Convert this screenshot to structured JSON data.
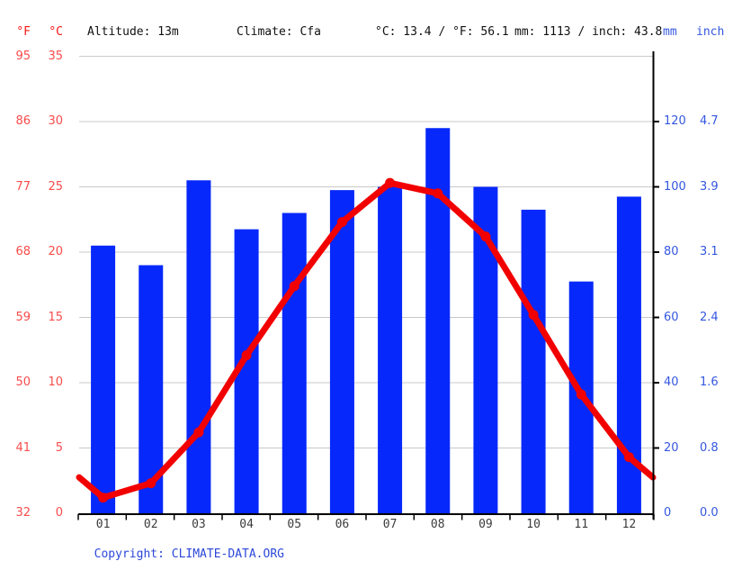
{
  "header": {
    "f_unit": "°F",
    "c_unit": "°C",
    "altitude": "Altitude: 13m",
    "climate": "Climate: Cfa",
    "temperature_summary": "°C: 13.4 / °F: 56.1",
    "precipitation_summary": "mm: 1113 / inch: 43.8",
    "mm_unit": "mm",
    "inch_unit": "inch"
  },
  "footer": {
    "copyright_prefix": "Copyright: ",
    "copyright_link": "CLIMATE-DATA.ORG"
  },
  "colors": {
    "bar_blue": "#0628fa",
    "line_red": "#f20000",
    "red_text_header": "#f51616",
    "red_text_axis": "#f94b4b",
    "blue_text": "#3457e0",
    "link_blue": "#2c47d9",
    "grid_gray": "#c9c9c9",
    "axis_black": "#000000",
    "month_text": "#3c3c3c",
    "header_text": "#111111"
  },
  "chart_data": {
    "type": "bar",
    "subtype": "climograph: monthly precipitation bars + monthly mean temperature line",
    "title": "",
    "categories": [
      "01",
      "02",
      "03",
      "04",
      "05",
      "06",
      "07",
      "08",
      "09",
      "10",
      "11",
      "12"
    ],
    "series": [
      {
        "name": "Precipitation (mm)",
        "type": "bar",
        "values": [
          82,
          76,
          102,
          87,
          92,
          99,
          100,
          118,
          100,
          93,
          71,
          97
        ]
      },
      {
        "name": "Temperature (°C)",
        "type": "line",
        "values": [
          1.2,
          2.3,
          6.2,
          12.1,
          17.4,
          22.3,
          25.3,
          24.5,
          21.2,
          15.2,
          9.1,
          4.3
        ]
      }
    ],
    "y_left_temperature": {
      "unit_c": "°C",
      "unit_f": "°F",
      "ticks_c": [
        "35",
        "30",
        "25",
        "20",
        "15",
        "10",
        "5",
        "0"
      ],
      "ticks_f": [
        "95",
        "86",
        "77",
        "68",
        "59",
        "50",
        "41",
        "32"
      ],
      "range_c": [
        0,
        35.5
      ]
    },
    "y_right_precipitation": {
      "unit_mm": "mm",
      "unit_inch": "inch",
      "ticks_mm": [
        "120",
        "100",
        "80",
        "60",
        "40",
        "20",
        "0"
      ],
      "ticks_inch": [
        "4.7",
        "3.9",
        "3.1",
        "2.4",
        "1.6",
        "0.8",
        "0.0"
      ],
      "range_mm": [
        0,
        142
      ]
    },
    "grid": true,
    "legend_position": "none",
    "annotations": {
      "altitude": "13m",
      "climate_classification": "Cfa",
      "annual_mean_temp_c": 13.4,
      "annual_mean_temp_f": 56.1,
      "annual_precip_mm": 1113,
      "annual_precip_inch": 43.8
    }
  }
}
